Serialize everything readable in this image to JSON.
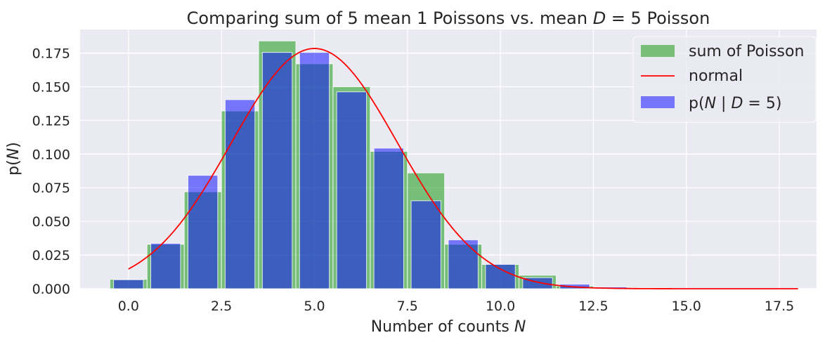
{
  "chart_data": {
    "type": "bar",
    "title": "Comparing sum of 5 mean 1 Poissons vs. mean D = 5 Poisson",
    "title_parts": {
      "prefix": "Comparing sum of 5 mean 1 Poissons vs. mean ",
      "var": "D",
      "op": " = ",
      "value": "5",
      "suffix": " Poisson"
    },
    "xlabel": "Number of counts N",
    "xlabel_parts": {
      "text": "Number of counts ",
      "var": "N"
    },
    "ylabel": "p(N)",
    "ylabel_parts": {
      "pre": "p(",
      "var": "N",
      "post": ")"
    },
    "xlim": [
      -1.3,
      18.5
    ],
    "ylim": [
      0,
      0.1925
    ],
    "xticks": [
      0.0,
      2.5,
      5.0,
      7.5,
      10.0,
      12.5,
      15.0,
      17.5
    ],
    "xtick_labels": [
      "0.0",
      "2.5",
      "5.0",
      "7.5",
      "10.0",
      "12.5",
      "15.0",
      "17.5"
    ],
    "yticks": [
      0.0,
      0.025,
      0.05,
      0.075,
      0.1,
      0.125,
      0.15,
      0.175
    ],
    "ytick_labels": [
      "0.000",
      "0.025",
      "0.050",
      "0.075",
      "0.100",
      "0.125",
      "0.150",
      "0.175"
    ],
    "grid": true,
    "legend_placement": "top-right",
    "colors": {
      "background": "#eaeaf2",
      "grid": "#ffffff",
      "sum_of_poisson": "#2ca02c",
      "poisson_d5": "#0000ff",
      "normal": "#ff0000"
    },
    "series": [
      {
        "name": "sum of Poisson",
        "kind": "bar",
        "x": [
          0,
          1,
          2,
          3,
          4,
          5,
          6,
          7,
          8,
          9,
          10,
          11,
          12,
          13,
          14,
          15,
          16,
          17,
          18
        ],
        "values": [
          0.007,
          0.033,
          0.072,
          0.132,
          0.184,
          0.167,
          0.15,
          0.102,
          0.086,
          0.033,
          0.018,
          0.01,
          0.002,
          0.001,
          0.0005,
          0.0002,
          0.0001,
          0.0,
          0.0
        ],
        "opacity": 0.6
      },
      {
        "name": "p(N | D = 5)",
        "name_parts": {
          "pre": "p(",
          "var1": "N",
          "mid": " | ",
          "var2": "D",
          "op": " = ",
          "val": "5",
          "post": ")"
        },
        "kind": "bar",
        "x": [
          0,
          1,
          2,
          3,
          4,
          5,
          6,
          7,
          8,
          9,
          10,
          11,
          12,
          13,
          14,
          15,
          16,
          17,
          18
        ],
        "values": [
          0.0067,
          0.0337,
          0.0842,
          0.1404,
          0.1755,
          0.1755,
          0.1462,
          0.1044,
          0.0653,
          0.0363,
          0.0181,
          0.0082,
          0.0034,
          0.0013,
          0.0005,
          0.0002,
          0.0001,
          0.0,
          0.0
        ],
        "opacity": 0.5
      },
      {
        "name": "normal",
        "kind": "line",
        "mean": 5,
        "variance": 5,
        "x_range": [
          0,
          18
        ]
      }
    ]
  }
}
